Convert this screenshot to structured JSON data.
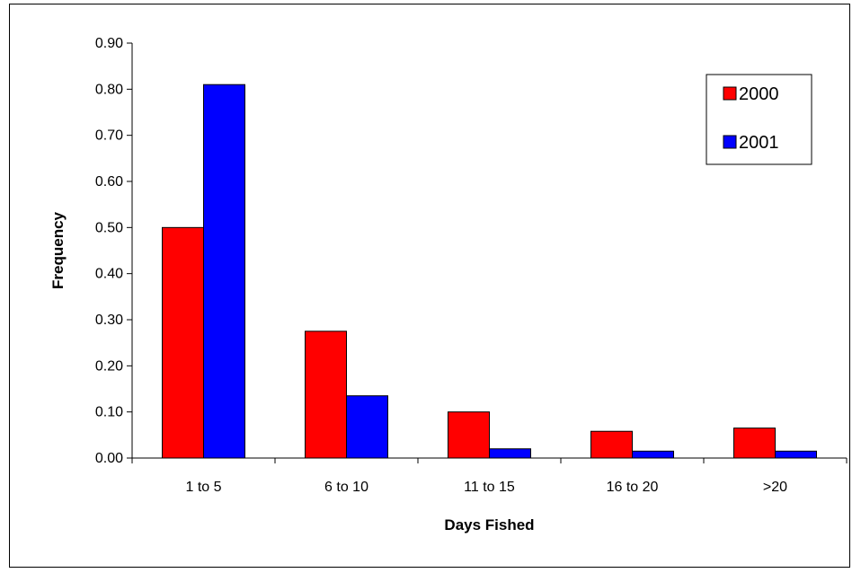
{
  "chart_data": {
    "type": "bar",
    "categories": [
      "1 to 5",
      "6 to 10",
      "11 to 15",
      "16 to 20",
      ">20"
    ],
    "series": [
      {
        "name": "2000",
        "color": "#ff0000",
        "values": [
          0.5,
          0.275,
          0.1,
          0.058,
          0.065
        ]
      },
      {
        "name": "2001",
        "color": "#0000ff",
        "values": [
          0.81,
          0.135,
          0.02,
          0.015,
          0.015
        ]
      }
    ],
    "title": "",
    "xlabel": "Days Fished",
    "ylabel": "Frequency",
    "ylim": [
      0,
      0.9
    ],
    "yticks": [
      "0.00",
      "0.10",
      "0.20",
      "0.30",
      "0.40",
      "0.50",
      "0.60",
      "0.70",
      "0.80",
      "0.90"
    ],
    "grid": false,
    "legend_position": "top-right"
  }
}
